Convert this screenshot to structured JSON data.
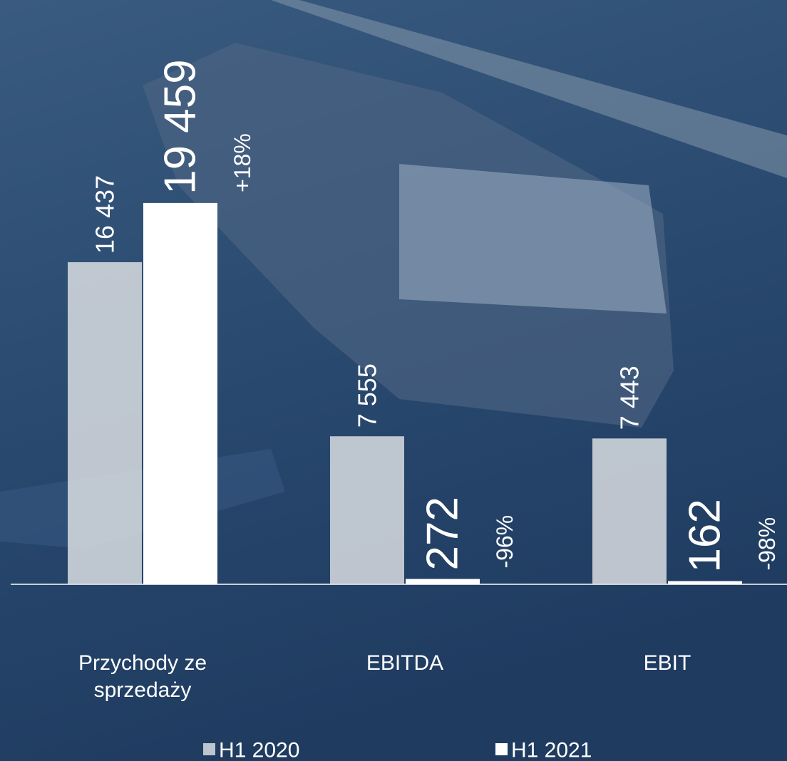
{
  "chart_data": {
    "type": "bar",
    "categories": [
      "Przychody ze sprzedaży",
      "EBITDA",
      "EBIT"
    ],
    "series": [
      {
        "name": "H1 2020",
        "color": "#d9dde2",
        "values": [
          16437,
          7555,
          7443
        ],
        "value_labels": [
          "16 437",
          "7 555",
          "7 443"
        ]
      },
      {
        "name": "H1 2021",
        "color": "#ffffff",
        "values": [
          19459,
          272,
          162
        ],
        "value_labels": [
          "19 459",
          "272",
          "162"
        ]
      }
    ],
    "changes": [
      "+18%",
      "-96%",
      "-98%"
    ],
    "ylim": [
      0,
      20000
    ]
  }
}
